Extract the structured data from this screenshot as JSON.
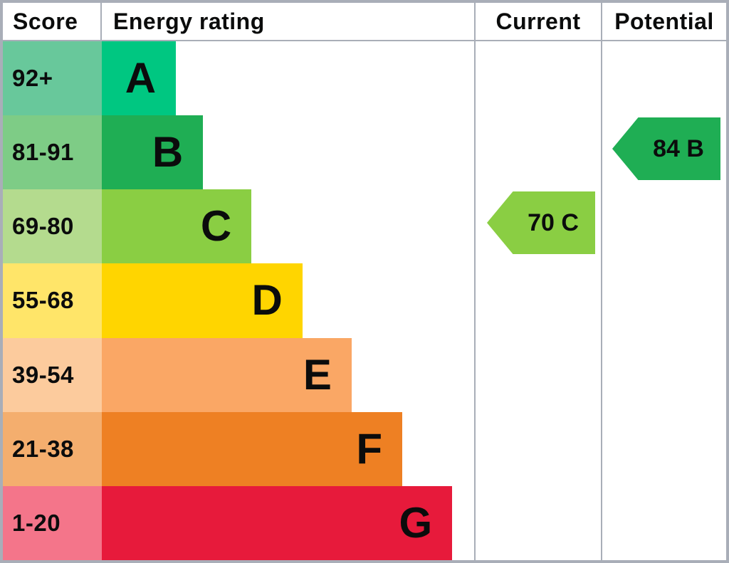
{
  "header": {
    "score": "Score",
    "energy_rating": "Energy rating",
    "current": "Current",
    "potential": "Potential"
  },
  "chart_data": {
    "type": "bar",
    "orientation": "horizontal",
    "columns": [
      "Score",
      "Energy rating",
      "Current",
      "Potential"
    ],
    "bands": [
      {
        "letter": "A",
        "score_range": "92+",
        "bar_width_pct": 19.9,
        "bar_color": "#00c781",
        "score_bg": "#68c89b"
      },
      {
        "letter": "B",
        "score_range": "81-91",
        "bar_width_pct": 27.2,
        "bar_color": "#1fae54",
        "score_bg": "#7ecc86"
      },
      {
        "letter": "C",
        "score_range": "69-80",
        "bar_width_pct": 40.2,
        "bar_color": "#8ace43",
        "score_bg": "#b4db8e"
      },
      {
        "letter": "D",
        "score_range": "55-68",
        "bar_width_pct": 53.9,
        "bar_color": "#ffd500",
        "score_bg": "#ffe569"
      },
      {
        "letter": "E",
        "score_range": "39-54",
        "bar_width_pct": 67.1,
        "bar_color": "#faa765",
        "score_bg": "#fccb9d"
      },
      {
        "letter": "F",
        "score_range": "21-38",
        "bar_width_pct": 80.7,
        "bar_color": "#ee8023",
        "score_bg": "#f4ae6e"
      },
      {
        "letter": "G",
        "score_range": "1-20",
        "bar_width_pct": 94.1,
        "bar_color": "#e71a3b",
        "score_bg": "#f4758a"
      }
    ],
    "current": {
      "label": "70 C",
      "value": 70,
      "band": "C",
      "band_index": 2,
      "color": "#8ace43"
    },
    "potential": {
      "label": "84 B",
      "value": 84,
      "band": "B",
      "band_index": 1,
      "color": "#1fae54"
    }
  },
  "colors": {
    "grid_line": "#a9aeb8",
    "text": "#0b0c0c",
    "background": "#ffffff"
  }
}
